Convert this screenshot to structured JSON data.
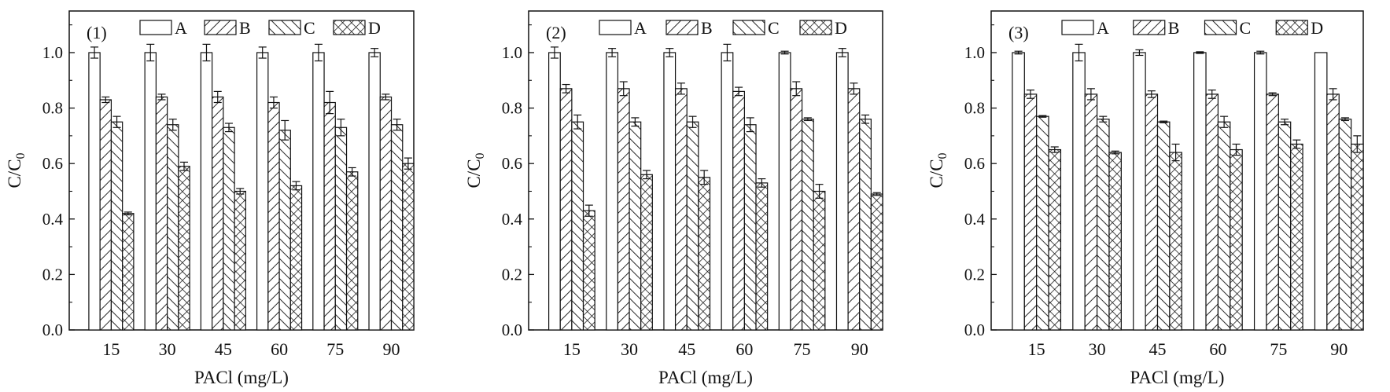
{
  "chart_data": [
    {
      "type": "bar",
      "panel_label": "(1)",
      "categories": [
        "15",
        "30",
        "45",
        "60",
        "75",
        "90"
      ],
      "xlabel": "PACl (mg/L)",
      "ylabel": "C/C",
      "ylabel_sub": "0",
      "ylim": [
        0,
        1.15
      ],
      "yticks": [
        "0.0",
        "0.2",
        "0.4",
        "0.6",
        "0.8",
        "1.0"
      ],
      "series": [
        {
          "name": "A",
          "values": [
            1.0,
            1.0,
            1.0,
            1.0,
            1.0,
            1.0
          ],
          "errors": [
            0.02,
            0.03,
            0.03,
            0.02,
            0.03,
            0.015
          ]
        },
        {
          "name": "B",
          "values": [
            0.83,
            0.84,
            0.84,
            0.82,
            0.82,
            0.84
          ],
          "errors": [
            0.01,
            0.01,
            0.02,
            0.02,
            0.04,
            0.01
          ]
        },
        {
          "name": "C",
          "values": [
            0.75,
            0.74,
            0.73,
            0.72,
            0.73,
            0.74
          ],
          "errors": [
            0.02,
            0.02,
            0.015,
            0.035,
            0.03,
            0.02
          ]
        },
        {
          "name": "D",
          "values": [
            0.42,
            0.59,
            0.5,
            0.52,
            0.57,
            0.6
          ],
          "errors": [
            0.005,
            0.015,
            0.01,
            0.015,
            0.015,
            0.02
          ]
        }
      ]
    },
    {
      "type": "bar",
      "panel_label": "(2)",
      "categories": [
        "15",
        "30",
        "45",
        "60",
        "75",
        "90"
      ],
      "xlabel": "PACl (mg/L)",
      "ylabel": "C/C",
      "ylabel_sub": "0",
      "ylim": [
        0,
        1.15
      ],
      "yticks": [
        "0.0",
        "0.2",
        "0.4",
        "0.6",
        "0.8",
        "1.0"
      ],
      "series": [
        {
          "name": "A",
          "values": [
            1.0,
            1.0,
            1.0,
            1.0,
            1.0,
            1.0
          ],
          "errors": [
            0.02,
            0.015,
            0.015,
            0.03,
            0.005,
            0.015
          ]
        },
        {
          "name": "B",
          "values": [
            0.87,
            0.87,
            0.87,
            0.86,
            0.87,
            0.87
          ],
          "errors": [
            0.015,
            0.025,
            0.02,
            0.015,
            0.025,
            0.02
          ]
        },
        {
          "name": "C",
          "values": [
            0.75,
            0.75,
            0.75,
            0.74,
            0.76,
            0.76
          ],
          "errors": [
            0.025,
            0.015,
            0.02,
            0.025,
            0.005,
            0.015
          ]
        },
        {
          "name": "D",
          "values": [
            0.43,
            0.56,
            0.55,
            0.53,
            0.5,
            0.49
          ],
          "errors": [
            0.02,
            0.015,
            0.025,
            0.015,
            0.025,
            0.005
          ]
        }
      ]
    },
    {
      "type": "bar",
      "panel_label": "(3)",
      "categories": [
        "15",
        "30",
        "45",
        "60",
        "75",
        "90"
      ],
      "xlabel": "PACl (mg/L)",
      "ylabel": "C/C",
      "ylabel_sub": "0",
      "ylim": [
        0,
        1.15
      ],
      "yticks": [
        "0.0",
        "0.2",
        "0.4",
        "0.6",
        "0.8",
        "1.0"
      ],
      "series": [
        {
          "name": "A",
          "values": [
            1.0,
            1.0,
            1.0,
            1.0,
            1.0,
            1.0
          ],
          "errors": [
            0.005,
            0.03,
            0.01,
            0.003,
            0.005,
            0.0
          ]
        },
        {
          "name": "B",
          "values": [
            0.85,
            0.85,
            0.85,
            0.85,
            0.85,
            0.85
          ],
          "errors": [
            0.015,
            0.02,
            0.012,
            0.015,
            0.005,
            0.02
          ]
        },
        {
          "name": "C",
          "values": [
            0.77,
            0.76,
            0.75,
            0.75,
            0.75,
            0.76
          ],
          "errors": [
            0.003,
            0.01,
            0.003,
            0.02,
            0.01,
            0.005
          ]
        },
        {
          "name": "D",
          "values": [
            0.65,
            0.64,
            0.64,
            0.65,
            0.67,
            0.67
          ],
          "errors": [
            0.01,
            0.005,
            0.03,
            0.02,
            0.015,
            0.03
          ]
        }
      ]
    }
  ]
}
